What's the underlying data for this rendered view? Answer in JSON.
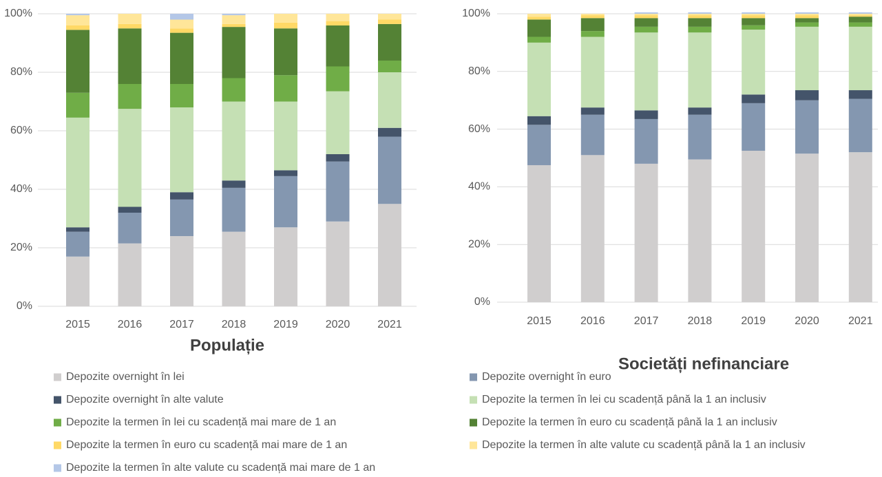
{
  "chart_data": [
    {
      "type": "bar",
      "stacked": true,
      "title": "Populație",
      "categories": [
        "2015",
        "2016",
        "2017",
        "2018",
        "2019",
        "2020",
        "2021"
      ],
      "ylim": [
        0,
        100
      ],
      "yticks": [
        {
          "value": 0,
          "label": "0%"
        },
        {
          "value": 20,
          "label": "20%"
        },
        {
          "value": 40,
          "label": "40%"
        },
        {
          "value": 60,
          "label": "60%"
        },
        {
          "value": 80,
          "label": "80%"
        },
        {
          "value": 100,
          "label": "100%"
        }
      ],
      "grid": true,
      "series": [
        {
          "name": "Depozite overnight în lei",
          "color": "#d0cece",
          "values": [
            17,
            21.5,
            24,
            25.5,
            27,
            29,
            35
          ]
        },
        {
          "name": "Depozite overnight în euro",
          "color": "#8497b0",
          "values": [
            8.5,
            10.5,
            12.5,
            15,
            17.5,
            20.5,
            23
          ]
        },
        {
          "name": "Depozite overnight în alte valute",
          "color": "#44546a",
          "values": [
            1.5,
            2,
            2.5,
            2.5,
            2,
            2.5,
            3
          ]
        },
        {
          "name": "Depozite la termen în lei cu scadență până la 1 an inclusiv",
          "color": "#c5e0b4",
          "values": [
            37.5,
            33.5,
            29,
            27,
            23.5,
            21.5,
            19
          ]
        },
        {
          "name": "Depozite la termen în lei cu scadență mai mare de 1 an",
          "color": "#70ad47",
          "values": [
            8.5,
            8.5,
            8,
            8,
            9,
            8.5,
            4
          ]
        },
        {
          "name": "Depozite la termen în euro cu scadență până la 1 an inclusiv",
          "color": "#548235",
          "values": [
            21.5,
            19,
            17.5,
            17.5,
            16,
            14,
            12.5
          ]
        },
        {
          "name": "Depozite la termen în euro cu scadență mai mare de 1 an",
          "color": "#ffd966",
          "values": [
            1.5,
            1.5,
            1.5,
            1,
            2,
            1.5,
            1.5
          ]
        },
        {
          "name": "Depozite la termen în alte valute cu scadență până la 1 an inclusiv",
          "color": "#ffe699",
          "values": [
            3.5,
            3.5,
            3,
            3,
            3,
            2.5,
            2
          ]
        },
        {
          "name": "Depozite la termen în alte valute cu scadență mai mare de 1 an",
          "color": "#b4c7e7",
          "values": [
            0.5,
            0,
            2,
            0.5,
            0,
            0,
            0
          ]
        }
      ]
    },
    {
      "type": "bar",
      "stacked": true,
      "title": "Societăți nefinanciare",
      "categories": [
        "2015",
        "2016",
        "2017",
        "2018",
        "2019",
        "2020",
        "2021"
      ],
      "ylim": [
        0,
        100
      ],
      "yticks": [
        {
          "value": 0,
          "label": "0%"
        },
        {
          "value": 20,
          "label": "20%"
        },
        {
          "value": 40,
          "label": "40%"
        },
        {
          "value": 60,
          "label": "60%"
        },
        {
          "value": 80,
          "label": "80%"
        },
        {
          "value": 100,
          "label": "100%"
        }
      ],
      "grid": true,
      "series": [
        {
          "values": [
            47.5,
            51,
            48,
            49.5,
            52.5,
            51.5,
            52
          ]
        },
        {
          "values": [
            14,
            14,
            15.5,
            15.5,
            16.5,
            18.5,
            18.5
          ]
        },
        {
          "values": [
            3,
            2.5,
            3,
            2.5,
            3,
            3.5,
            3
          ]
        },
        {
          "values": [
            25.5,
            24.5,
            27,
            26,
            22.5,
            22,
            22
          ]
        },
        {
          "values": [
            2,
            2,
            2,
            2,
            1.5,
            1.5,
            1.5
          ]
        },
        {
          "values": [
            6,
            4.5,
            3,
            3,
            2.5,
            1.5,
            2
          ]
        },
        {
          "values": [
            1,
            1,
            1,
            1,
            1,
            1,
            0.5
          ]
        },
        {
          "values": [
            1,
            0.5,
            0.5,
            0.5,
            0.5,
            0.5,
            0.5
          ]
        },
        {
          "values": [
            0,
            0,
            0.5,
            0.5,
            0.5,
            0.5,
            0.5
          ]
        }
      ]
    }
  ]
}
